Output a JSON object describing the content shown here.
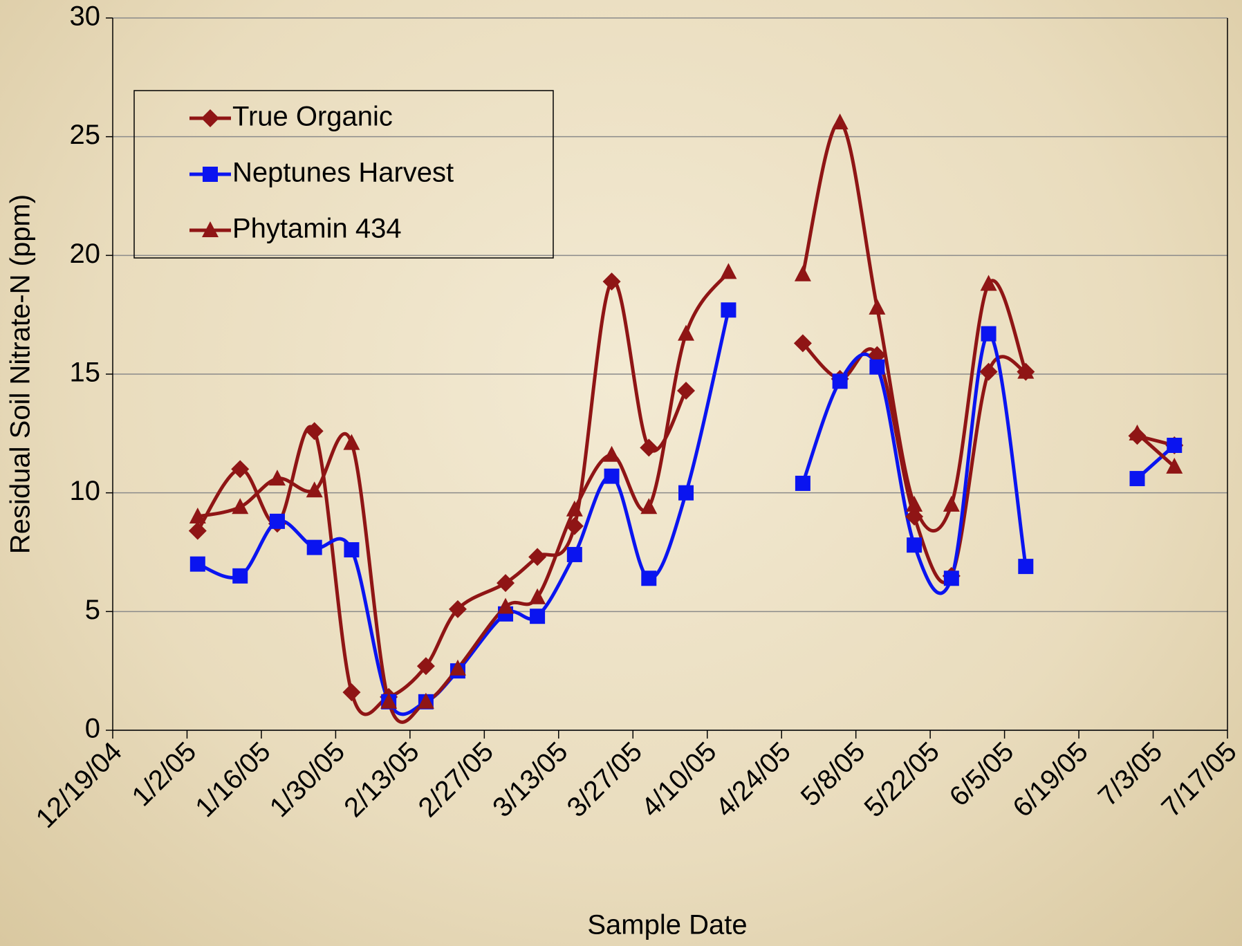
{
  "chart_data": {
    "type": "line",
    "xlabel": "Sample Date",
    "ylabel": "Residual Soil Nitrate-N (ppm)",
    "x": [
      "1/4/05",
      "1/12/05",
      "1/19/05",
      "1/26/05",
      "2/2/05",
      "2/9/05",
      "2/16/05",
      "2/22/05",
      "3/3/05",
      "3/9/05",
      "3/16/05",
      "3/23/05",
      "3/30/05",
      "4/6/05",
      "4/14/05",
      "4/21/05",
      "4/28/05",
      "5/5/05",
      "5/12/05",
      "5/19/05",
      "5/26/05",
      "6/2/05",
      "6/9/05",
      "6/16/05",
      "6/30/05",
      "7/7/05"
    ],
    "series": [
      {
        "name": "True Organic",
        "color": "#8f1515",
        "marker": "diamond",
        "values": [
          8.4,
          11.0,
          8.7,
          12.6,
          1.6,
          1.4,
          2.7,
          5.1,
          6.2,
          7.3,
          8.6,
          18.9,
          11.9,
          14.3,
          null,
          null,
          16.3,
          14.8,
          15.8,
          9.0,
          6.5,
          15.1,
          15.1,
          null,
          12.4,
          12.0
        ]
      },
      {
        "name": "Neptunes Harvest",
        "color": "#0a14f0",
        "marker": "square",
        "values": [
          7.0,
          6.5,
          8.8,
          7.7,
          7.6,
          1.2,
          1.2,
          2.5,
          4.9,
          4.8,
          7.4,
          10.7,
          6.4,
          10.0,
          17.7,
          null,
          10.4,
          14.7,
          15.3,
          7.8,
          6.4,
          16.7,
          6.9,
          null,
          10.6,
          12.0
        ]
      },
      {
        "name": "Phytamin 434",
        "color": "#8f1515",
        "marker": "triangle",
        "values": [
          9.0,
          9.4,
          10.6,
          10.1,
          12.1,
          1.2,
          1.2,
          2.6,
          5.2,
          5.6,
          9.3,
          11.6,
          9.4,
          16.7,
          19.3,
          null,
          19.2,
          25.6,
          17.8,
          9.5,
          9.5,
          18.8,
          15.1,
          null,
          12.5,
          11.1
        ]
      }
    ],
    "xlim": [
      "12/19/04",
      "7/17/05"
    ],
    "xticks": [
      "12/19/04",
      "1/2/05",
      "1/16/05",
      "1/30/05",
      "2/13/05",
      "2/27/05",
      "3/13/05",
      "3/27/05",
      "4/10/05",
      "4/24/05",
      "5/8/05",
      "5/22/05",
      "6/5/05",
      "6/19/05",
      "7/3/05",
      "7/17/05"
    ],
    "ylim": [
      0,
      30
    ],
    "yticks": [
      0,
      5,
      10,
      15,
      20,
      25,
      30
    ],
    "grid": true,
    "smooth": true,
    "legend": "upper left"
  }
}
